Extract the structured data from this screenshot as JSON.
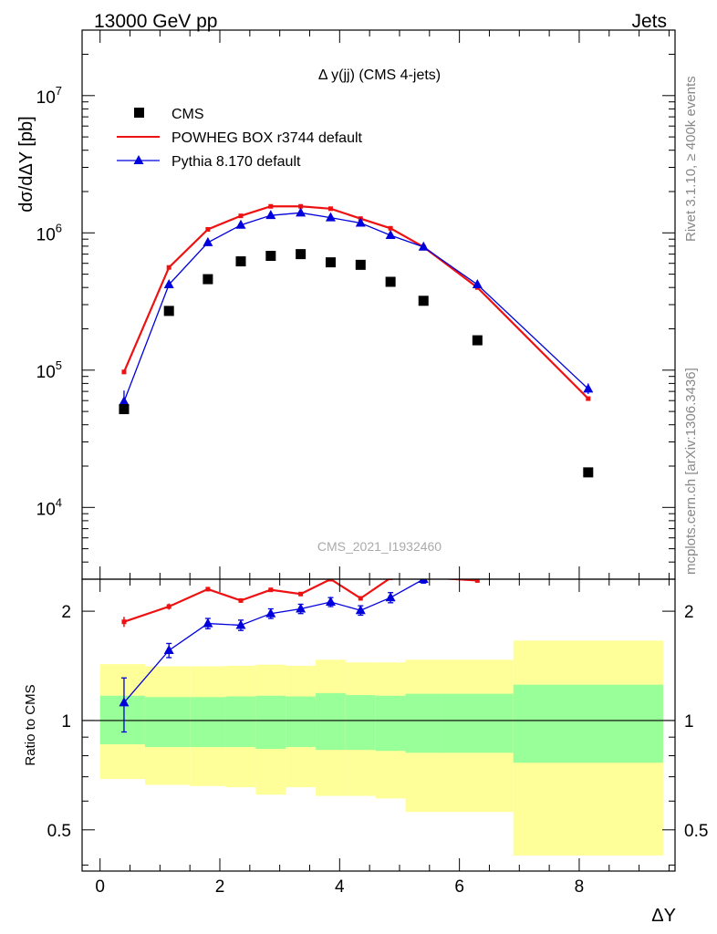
{
  "header": {
    "left": "13000 GeV pp",
    "right": "Jets"
  },
  "side_labels": {
    "rivet": "Rivet 3.1.10, ≥ 400k events",
    "mcplots": "mcplots.cern.ch [arXiv:1306.3436]"
  },
  "watermark": "CMS_2021_I1932460",
  "colors": {
    "cms": "#000000",
    "powheg": "#ee1111",
    "pythia": "#0000dd",
    "band_inner": "#99ff99",
    "band_outer": "#ffff99"
  },
  "chart_data": [
    {
      "type": "scatter",
      "title": "Δ y(jj) (CMS 4-jets)",
      "ylabel": "dσ/dΔY [pb]",
      "xlabel": "",
      "yscale": "log",
      "xlim": [
        -0.3,
        9.6
      ],
      "ylim": [
        3000,
        30000000
      ],
      "ytick_labels": [
        "10^4",
        "10^5",
        "10^6",
        "10^7"
      ],
      "legend_position": "top-left",
      "series": [
        {
          "name": "CMS",
          "style": "marker-square",
          "x": [
            0.4,
            1.15,
            1.8,
            2.35,
            2.85,
            3.35,
            3.85,
            4.35,
            4.85,
            5.4,
            6.3,
            8.15
          ],
          "y": [
            52000,
            270000,
            460000,
            620000,
            680000,
            700000,
            610000,
            585000,
            440000,
            320000,
            165000,
            18000
          ]
        },
        {
          "name": "POWHEG BOX r3744 default",
          "style": "line",
          "x": [
            0.4,
            1.15,
            1.8,
            2.35,
            2.85,
            3.35,
            3.85,
            4.35,
            4.85,
            5.4,
            6.3,
            8.15
          ],
          "y": [
            97000,
            560000,
            1060000,
            1330000,
            1560000,
            1560000,
            1500000,
            1270000,
            1080000,
            790000,
            400000,
            62000
          ]
        },
        {
          "name": "Pythia 8.170 default",
          "style": "line-triangle",
          "x": [
            0.4,
            1.15,
            1.8,
            2.35,
            2.85,
            3.35,
            3.85,
            4.35,
            4.85,
            5.4,
            6.3,
            8.15
          ],
          "y": [
            59000,
            420000,
            850000,
            1140000,
            1340000,
            1400000,
            1290000,
            1180000,
            960000,
            790000,
            420000,
            73000
          ],
          "yerr_low": [
            10000,
            0,
            0,
            0,
            0,
            0,
            0,
            0,
            0,
            0,
            0,
            6000
          ],
          "yerr_high": [
            12000,
            0,
            0,
            0,
            0,
            0,
            0,
            0,
            0,
            0,
            0,
            7000
          ]
        }
      ]
    },
    {
      "type": "scatter",
      "title": "",
      "ylabel": "Ratio to CMS",
      "xlabel": "ΔY",
      "yscale": "log",
      "xlim": [
        -0.3,
        9.6
      ],
      "ylim": [
        0.385,
        2.45
      ],
      "xticks": [
        0,
        2,
        4,
        6,
        8
      ],
      "yticks": [
        0.5,
        1,
        2
      ],
      "reference_line": 1,
      "bins": [
        [
          0.0,
          0.75
        ],
        [
          0.75,
          1.5
        ],
        [
          1.5,
          2.1
        ],
        [
          2.1,
          2.6
        ],
        [
          2.6,
          3.1
        ],
        [
          3.1,
          3.6
        ],
        [
          3.6,
          4.1
        ],
        [
          4.1,
          4.6
        ],
        [
          4.6,
          5.1
        ],
        [
          5.1,
          5.7
        ],
        [
          5.7,
          6.9
        ],
        [
          6.9,
          9.4
        ]
      ],
      "band_inner": {
        "low": [
          0.86,
          0.845,
          0.845,
          0.845,
          0.835,
          0.845,
          0.83,
          0.83,
          0.825,
          0.815,
          0.815,
          0.765
        ],
        "high": [
          1.17,
          1.16,
          1.16,
          1.165,
          1.17,
          1.165,
          1.19,
          1.175,
          1.17,
          1.185,
          1.185,
          1.255
        ]
      },
      "band_outer": {
        "low": [
          0.69,
          0.665,
          0.66,
          0.655,
          0.625,
          0.655,
          0.62,
          0.62,
          0.61,
          0.56,
          0.56,
          0.425
        ],
        "high": [
          1.43,
          1.41,
          1.41,
          1.415,
          1.425,
          1.415,
          1.47,
          1.445,
          1.445,
          1.47,
          1.47,
          1.66
        ]
      },
      "series": [
        {
          "name": "POWHEG BOX r3744 default",
          "style": "line",
          "x": [
            0.4,
            1.15,
            1.8,
            2.35,
            2.85,
            3.35,
            3.85,
            4.35,
            4.85,
            5.4,
            6.3
          ],
          "y": [
            1.87,
            2.06,
            2.3,
            2.14,
            2.29,
            2.23,
            2.45,
            2.17,
            2.47,
            2.48,
            2.43
          ],
          "yerr": [
            0.06,
            0.04,
            0.03,
            0.03,
            0.03,
            0.03,
            0.03,
            0.03,
            0.03,
            0.03,
            0.03
          ]
        },
        {
          "name": "Pythia 8.170 default",
          "style": "line-triangle",
          "x": [
            0.4,
            1.15,
            1.8,
            2.35,
            2.85,
            3.35,
            3.85,
            4.35,
            4.85,
            5.4
          ],
          "y": [
            1.12,
            1.56,
            1.85,
            1.83,
            1.97,
            2.03,
            2.12,
            2.01,
            2.18,
            2.45
          ],
          "yerr": [
            0.19,
            0.07,
            0.06,
            0.06,
            0.06,
            0.06,
            0.06,
            0.06,
            0.07,
            0.06
          ]
        }
      ]
    }
  ]
}
